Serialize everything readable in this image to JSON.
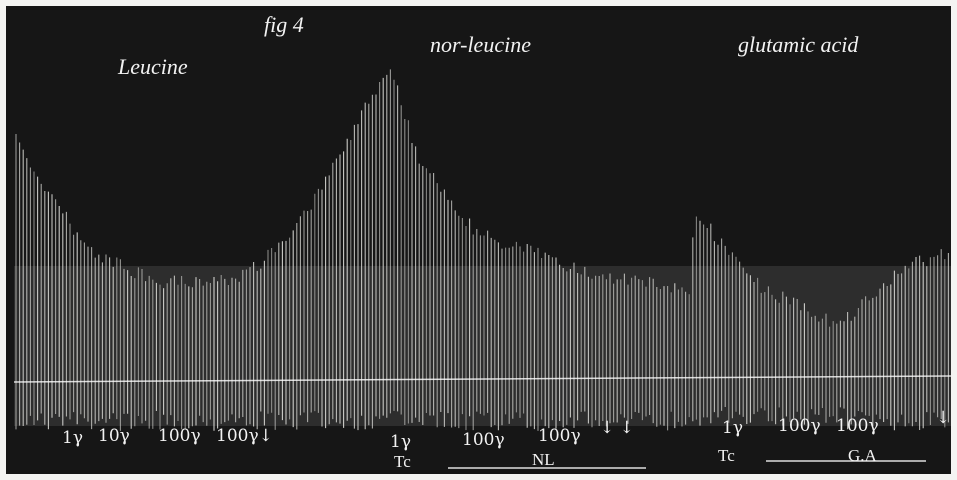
{
  "figure_label": "fig 4",
  "trace_labels": [
    "Leucine",
    "nor-leucine",
    "glutamic acid"
  ],
  "dose_marks": [
    "1γ",
    "10γ",
    "100γ",
    "100γ↓",
    "1γ",
    "100γ",
    "100γ",
    "↓ ↓",
    "1γ",
    "100γ",
    "100γ",
    "↓"
  ],
  "bottom_labels": [
    "Tc",
    "NL",
    "Tc",
    "G.A"
  ]
}
